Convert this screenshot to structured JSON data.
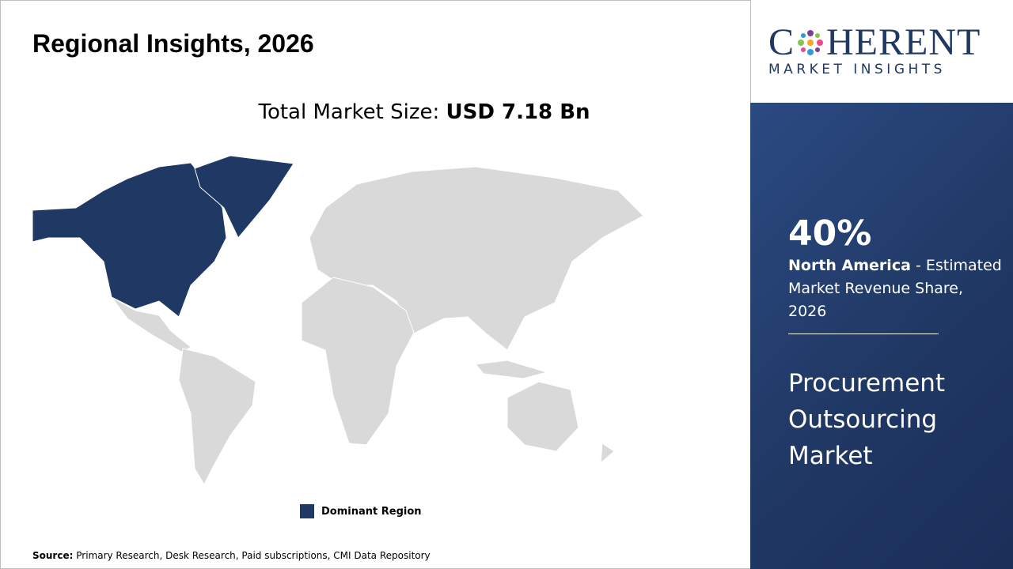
{
  "header": {
    "title": "Regional Insights, 2026"
  },
  "market_size": {
    "label": "Total Market Size:",
    "value": "USD 7.18 Bn"
  },
  "legend": {
    "label": "Dominant Region"
  },
  "source": {
    "label": "Source:",
    "text": "Primary Research, Desk Research, Paid subscriptions, CMI Data Repository"
  },
  "logo": {
    "brand_start": "C",
    "brand_end": "HERENT",
    "tagline": "MARKET INSIGHTS"
  },
  "highlight": {
    "share": "40%",
    "region": "North America",
    "description": " - Estimated Market Revenue Share, 2026",
    "market": "Procurement Outsourcing Market"
  }
}
